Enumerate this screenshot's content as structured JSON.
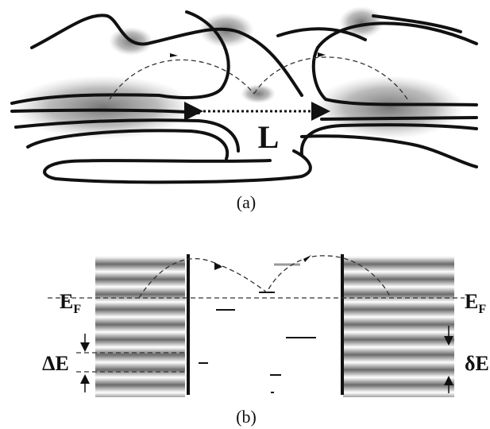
{
  "panel_a": {
    "length_label": "L",
    "caption": "(a)"
  },
  "panel_b": {
    "fermi_left": {
      "main": "E",
      "sub": "F"
    },
    "fermi_right": {
      "main": "E",
      "sub": "F"
    },
    "delta_E_label": "ΔE",
    "delta_e_label": "δE",
    "caption": "(b)"
  }
}
